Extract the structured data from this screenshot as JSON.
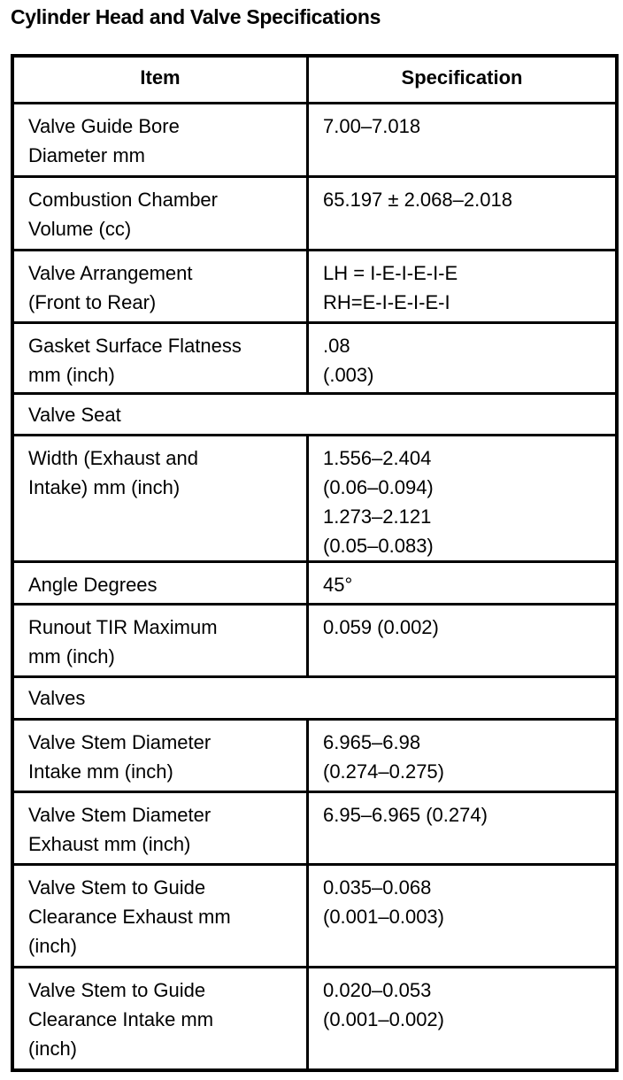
{
  "title": "Cylinder Head and Valve Specifications",
  "headers": [
    "Item",
    "Specification"
  ],
  "rows": [
    {
      "item": [
        "Valve Guide Bore",
        "Diameter mm"
      ],
      "spec": [
        "7.00–7.018"
      ]
    },
    {
      "item": [
        "Combustion Chamber",
        "Volume (cc)"
      ],
      "spec": [
        "65.197 ± 2.068–2.018"
      ]
    },
    {
      "item": [
        "Valve Arrangement",
        "(Front to Rear)"
      ],
      "spec": [
        "LH = I-E-I-E-I-E",
        "RH=E-I-E-I-E-I"
      ]
    },
    {
      "item": [
        "Gasket Surface Flatness",
        "mm (inch)"
      ],
      "spec": [
        ".08",
        "(.003)"
      ]
    },
    {
      "section": "Valve Seat"
    },
    {
      "item": [
        "Width (Exhaust and",
        "Intake) mm (inch)"
      ],
      "spec": [
        "1.556–2.404",
        "(0.06–0.094)",
        "1.273–2.121",
        "(0.05–0.083)"
      ]
    },
    {
      "item": [
        "Angle Degrees"
      ],
      "spec": [
        "45°"
      ]
    },
    {
      "item": [
        "Runout TIR Maximum",
        "mm (inch)"
      ],
      "spec": [
        "0.059 (0.002)"
      ]
    },
    {
      "section": "Valves"
    },
    {
      "item": [
        "Valve Stem Diameter",
        "Intake mm (inch)"
      ],
      "spec": [
        "6.965–6.98",
        "(0.274–0.275)"
      ]
    },
    {
      "item": [
        "Valve Stem Diameter",
        "Exhaust mm (inch)"
      ],
      "spec": [
        "6.95–6.965 (0.274)"
      ]
    },
    {
      "item": [
        "Valve Stem to Guide",
        "Clearance Exhaust mm",
        "(inch)"
      ],
      "spec": [
        "0.035–0.068",
        "(0.001–0.003)"
      ]
    },
    {
      "item": [
        "Valve Stem to Guide",
        "Clearance Intake mm",
        "(inch)"
      ],
      "spec": [
        "0.020–0.053",
        "(0.001–0.002)"
      ]
    }
  ]
}
